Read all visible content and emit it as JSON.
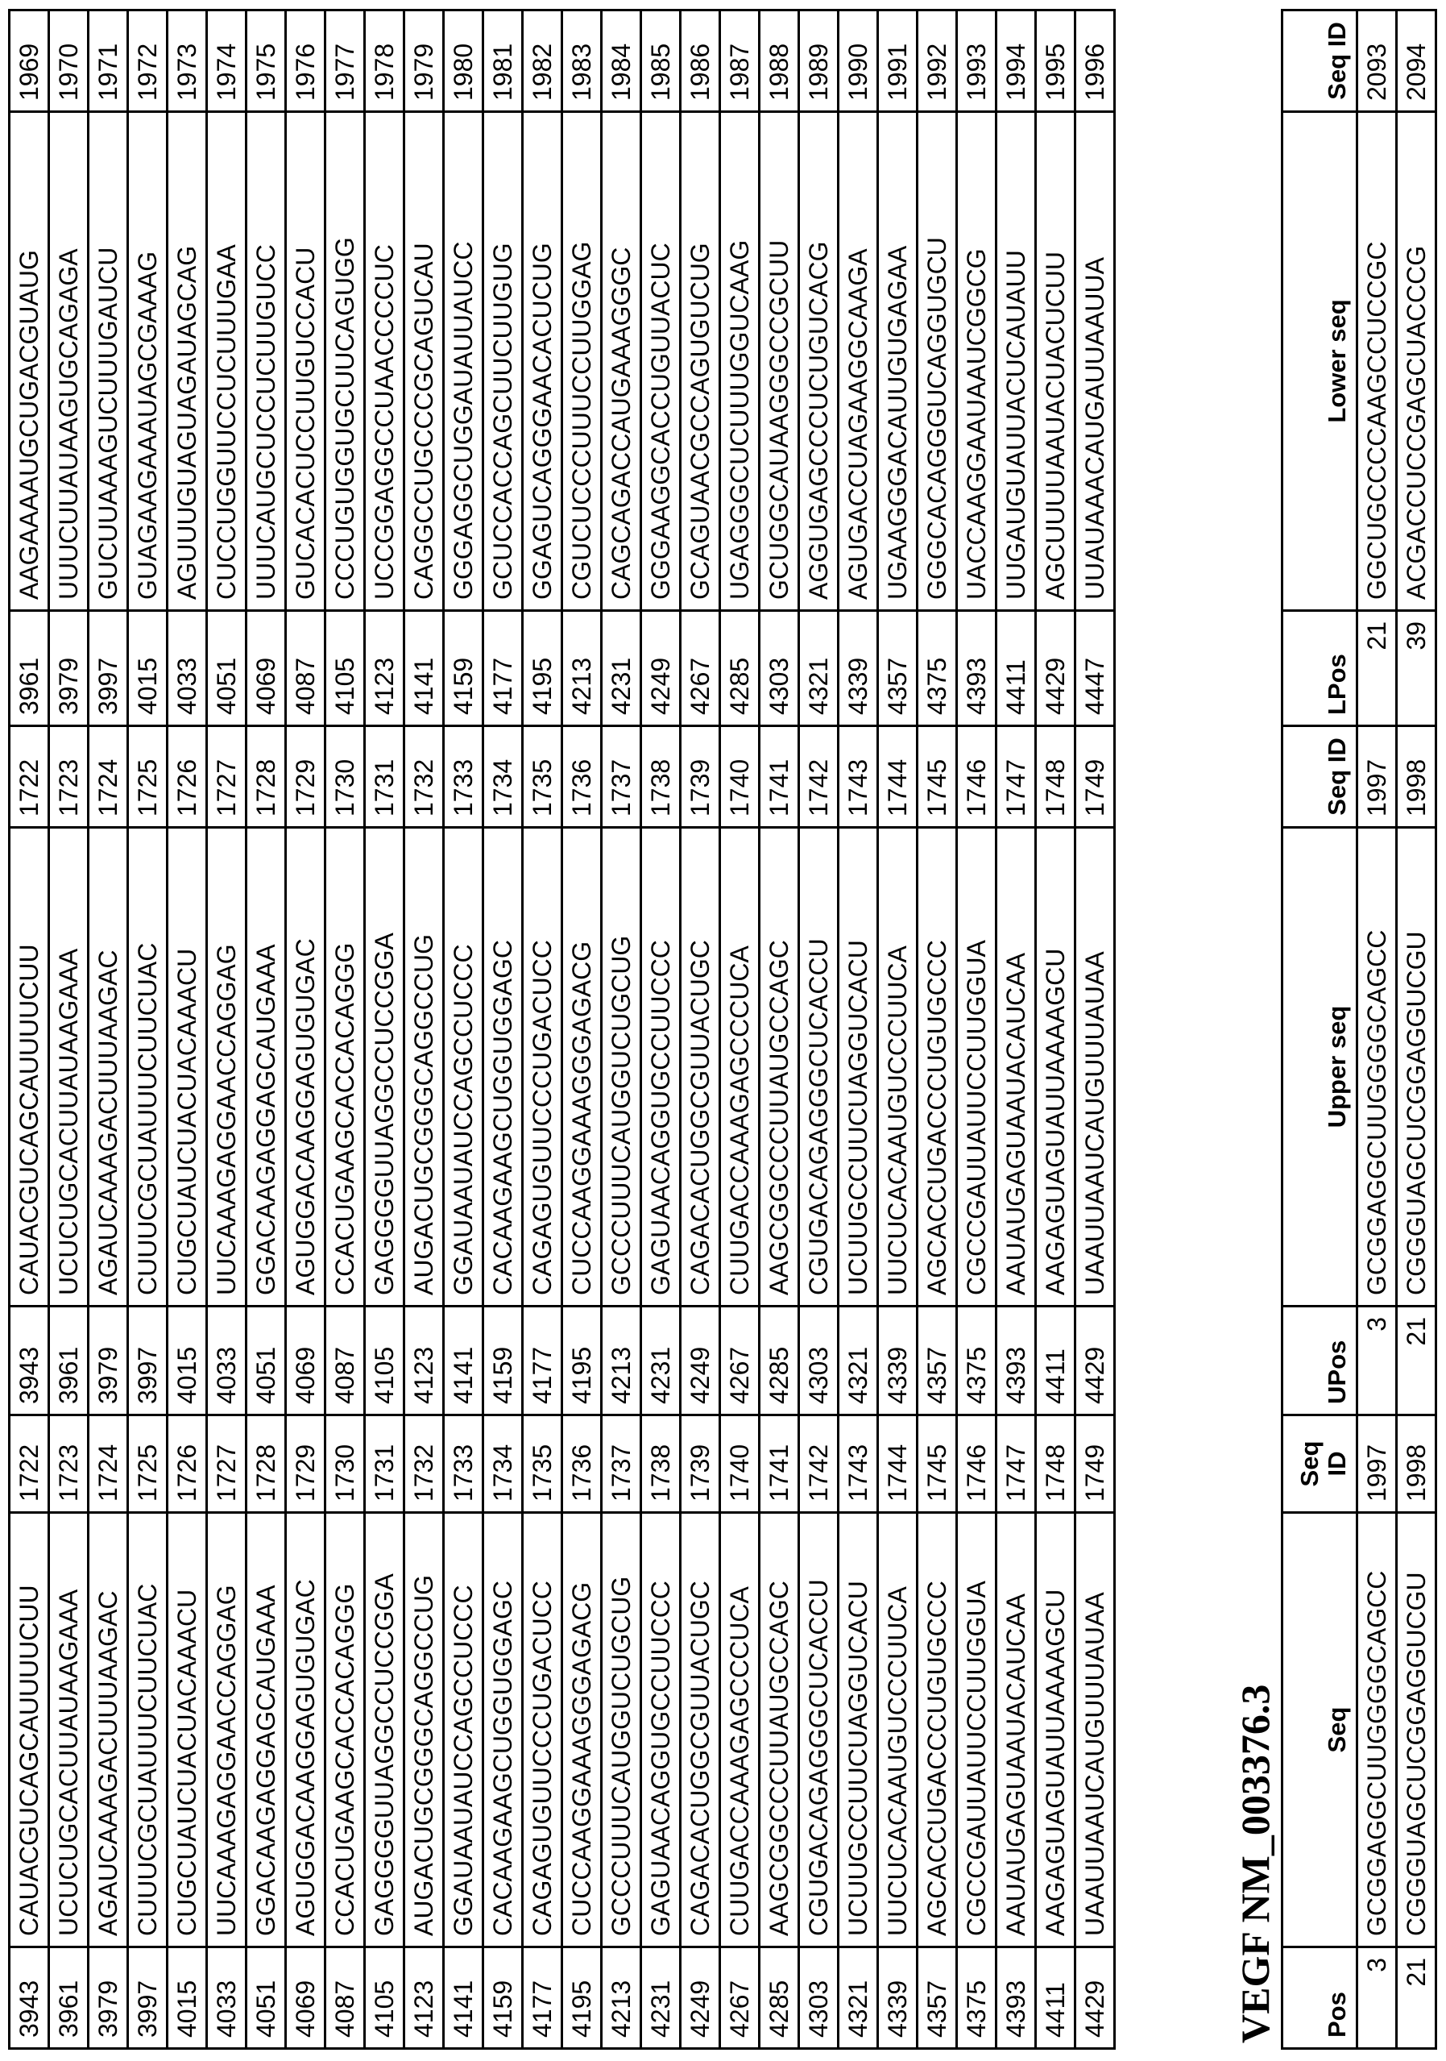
{
  "main_table": {
    "rows": [
      [
        "3943",
        "CAUACGUCAGCAUUUUCUU",
        "1722",
        "3943",
        "CAUACGUCAGCAUUUUCUU",
        "1722",
        "3961",
        "AAGAAAAUGCUGACGUAUG",
        "1969"
      ],
      [
        "3961",
        "UCUCUGCACUUAUAAGAAA",
        "1723",
        "3961",
        "UCUCUGCACUUAUAAGAAA",
        "1723",
        "3979",
        "UUUCUUAUAAGUGCAGAGA",
        "1970"
      ],
      [
        "3979",
        "AGAUCAAAGACUUUAAGAC",
        "1724",
        "3979",
        "AGAUCAAAGACUUUAAGAC",
        "1724",
        "3997",
        "GUCUUAAAGUCUUUGAUCU",
        "1971"
      ],
      [
        "3997",
        "CUUUCGCUAUUUCUUCUAC",
        "1725",
        "3997",
        "CUUUCGCUAUUUCUUCUAC",
        "1725",
        "4015",
        "GUAGAAGAAAUAGCGAAAG",
        "1972"
      ],
      [
        "4015",
        "CUGCUAUCUACUACAAACU",
        "1726",
        "4015",
        "CUGCUAUCUACUACAAACU",
        "1726",
        "4033",
        "AGUUUGUAGUAGAUAGCAG",
        "1973"
      ],
      [
        "4033",
        "UUCAAAGAGGAACCAGGAG",
        "1727",
        "4033",
        "UUCAAAGAGGAACCAGGAG",
        "1727",
        "4051",
        "CUCCUGGUUCCUCUUUGAA",
        "1974"
      ],
      [
        "4051",
        "GGACAAGAGGAGCAUGAAA",
        "1728",
        "4051",
        "GGACAAGAGGAGCAUGAAA",
        "1728",
        "4069",
        "UUUCAUGCUCCUCUUGUCC",
        "1975"
      ],
      [
        "4069",
        "AGUGGACAAGGAGUGUGAC",
        "1729",
        "4069",
        "AGUGGACAAGGAGUGUGAC",
        "1729",
        "4087",
        "GUCACACUCCUUGUCCACU",
        "1976"
      ],
      [
        "4087",
        "CCACUGAAGCACCACAGGG",
        "1730",
        "4087",
        "CCACUGAAGCACCACAGGG",
        "1730",
        "4105",
        "CCCUGUGGUGCUUCAGUGG",
        "1977"
      ],
      [
        "4105",
        "GAGGGGUUAGGCCUCCGGA",
        "1731",
        "4105",
        "GAGGGGUUAGGCCUCCGGA",
        "1731",
        "4123",
        "UCCGGAGGCCUAACCCCUC",
        "1978"
      ],
      [
        "4123",
        "AUGACUGCGGGCAGGCCUG",
        "1732",
        "4123",
        "AUGACUGCGGGCAGGCCUG",
        "1732",
        "4141",
        "CAGGCCUGCCCGCAGUCAU",
        "1979"
      ],
      [
        "4141",
        "GGAUAAUAUCCAGCCUCCC",
        "1733",
        "4141",
        "GGAUAAUAUCCAGCCUCCC",
        "1733",
        "4159",
        "GGGAGGCUGGAUAUUAUCC",
        "1980"
      ],
      [
        "4159",
        "CACAAGAAGCUGGUGGAGC",
        "1734",
        "4159",
        "CACAAGAAGCUGGUGGAGC",
        "1734",
        "4177",
        "GCUCCACCAGCUUCUUGUG",
        "1981"
      ],
      [
        "4177",
        "CAGAGUGUUCCCUGACUCC",
        "1735",
        "4177",
        "CAGAGUGUUCCCUGACUCC",
        "1735",
        "4195",
        "GGAGUCAGGGAACACUCUG",
        "1982"
      ],
      [
        "4195",
        "CUCCAAGGAAAGGGAGACG",
        "1736",
        "4195",
        "CUCCAAGGAAAGGGAGACG",
        "1736",
        "4213",
        "CGUCUCCCUUUCCUUGGAG",
        "1983"
      ],
      [
        "4213",
        "GCCCUUUCAUGGUCUGCUG",
        "1737",
        "4213",
        "GCCCUUUCAUGGUCUGCUG",
        "1737",
        "4231",
        "CAGCAGACCAUGAAAGGGC",
        "1984"
      ],
      [
        "4231",
        "GAGUAACAGGUGCCUUCCC",
        "1738",
        "4231",
        "GAGUAACAGGUGCCUUCCC",
        "1738",
        "4249",
        "GGGAAGGCACCUGUUACUC",
        "1985"
      ],
      [
        "4249",
        "CAGACACUGGCGUUACUGC",
        "1739",
        "4249",
        "CAGACACUGGCGUUACUGC",
        "1739",
        "4267",
        "GCAGUAACGCCAGUGUCUG",
        "1986"
      ],
      [
        "4267",
        "CUUGACCAAAGAGCCCUCA",
        "1740",
        "4267",
        "CUUGACCAAAGAGCCCUCA",
        "1740",
        "4285",
        "UGAGGGCUCUUUGGUCAAG",
        "1987"
      ],
      [
        "4285",
        "AAGCGGCCCUUAUGCCAGC",
        "1741",
        "4285",
        "AAGCGGCCCUUAUGCCAGC",
        "1741",
        "4303",
        "GCUGGCAUAAGGGCCGCUU",
        "1988"
      ],
      [
        "4303",
        "CGUGACAGAGGGCUCACCU",
        "1742",
        "4303",
        "CGUGACAGAGGGCUCACCU",
        "1742",
        "4321",
        "AGGUGAGCCCUCUGUCACG",
        "1989"
      ],
      [
        "4321",
        "UCUUGCCUUCUAGGUCACU",
        "1743",
        "4321",
        "UCUUGCCUUCUAGGUCACU",
        "1743",
        "4339",
        "AGUGACCUAGAAGGCAAGA",
        "1990"
      ],
      [
        "4339",
        "UUCUCACAAUGUCCCUUCA",
        "1744",
        "4339",
        "UUCUCACAAUGUCCCUUCA",
        "1744",
        "4357",
        "UGAAGGGACAUUGUGAGAA",
        "1991"
      ],
      [
        "4357",
        "AGCACCUGACCCUGUGCCC",
        "1745",
        "4357",
        "AGCACCUGACCCUGUGCCC",
        "1745",
        "4375",
        "GGGCACAGGGUCAGGUGCU",
        "1992"
      ],
      [
        "4375",
        "CGCCGAUUAUUCCUUGGUA",
        "1746",
        "4375",
        "CGCCGAUUAUUCCUUGGUA",
        "1746",
        "4393",
        "UACCAAGGAAUAAUCGGCG",
        "1993"
      ],
      [
        "4393",
        "AAUAUGAGUAAUACAUCAA",
        "1747",
        "4393",
        "AAUAUGAGUAAUACAUCAA",
        "1747",
        "4411",
        "UUGAUGUAUUACUCAUAUU",
        "1994"
      ],
      [
        "4411",
        "AAGAGUAGUAUUAAAAGCU",
        "1748",
        "4411",
        "AAGAGUAGUAUUAAAAGCU",
        "1748",
        "4429",
        "AGCUUUUAAUACUACUCUU",
        "1995"
      ],
      [
        "4429",
        "UAAUUAAUCAUGUUUAUAA",
        "1749",
        "4429",
        "UAAUUAAUCAUGUUUAUAA",
        "1749",
        "4447",
        "UUAUAAACAUGAUUAAUUA",
        "1996"
      ]
    ]
  },
  "section_title": "VEGF NM_003376.3",
  "sub_table": {
    "headers": [
      "Pos",
      "Seq",
      "Seq ID",
      "UPos",
      "Upper seq",
      "Seq ID",
      "LPos",
      "Lower seq",
      "Seq ID"
    ],
    "rows": [
      [
        "3",
        "GCGGAGGCUUGGGGCAGCC",
        "1997",
        "3",
        "GCGGAGGCUUGGGGCAGCC",
        "1997",
        "21",
        "GGCUGCCCCAAGCCUCCGC",
        "2093"
      ],
      [
        "21",
        "CGGGUAGCUCGGAGGUCGU",
        "1998",
        "21",
        "CGGGUAGCUCGGAGGUCGU",
        "1998",
        "39",
        "ACGACCUCCGAGCUACCCG",
        "2094"
      ]
    ]
  }
}
